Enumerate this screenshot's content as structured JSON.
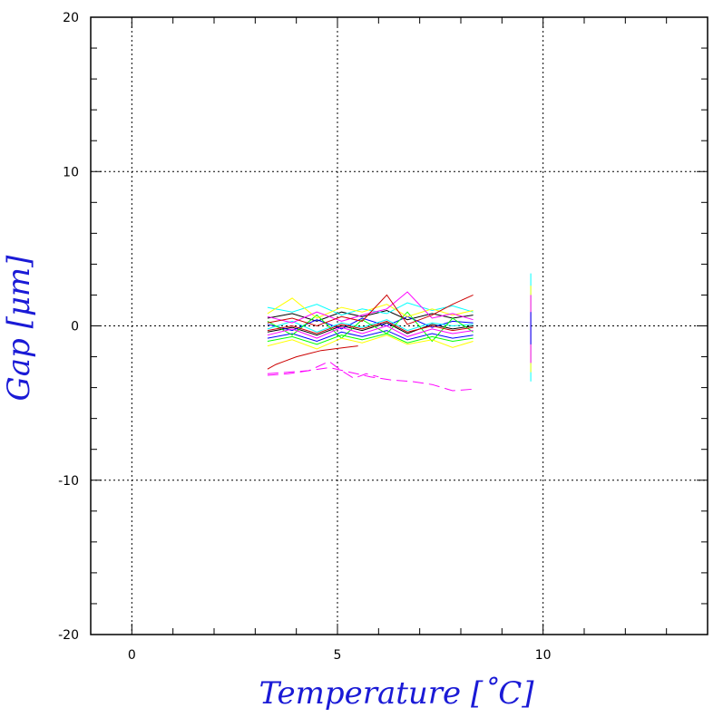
{
  "chart_data": {
    "type": "line",
    "title": "",
    "xlabel": "Temperature [˚C]",
    "ylabel": "Gap [μm]",
    "xlim": [
      -1,
      14
    ],
    "ylim": [
      -20,
      20
    ],
    "x_ticks": [
      0,
      5,
      10
    ],
    "y_ticks": [
      20,
      10,
      0,
      -10,
      -20
    ],
    "x_tick_labels": [
      "0",
      "5",
      "10"
    ],
    "y_tick_labels": [
      "20",
      "10",
      "0",
      "-10",
      "-20"
    ],
    "grid": true,
    "legend": "none",
    "series": [
      {
        "color": "#000000",
        "x": [
          3.3,
          3.9,
          4.5,
          5.1,
          5.6,
          6.2,
          6.7,
          7.3,
          7.8,
          8.3
        ],
        "y": [
          0.5,
          0.8,
          0.3,
          0.9,
          0.6,
          1.0,
          0.4,
          0.8,
          0.5,
          0.7
        ]
      },
      {
        "color": "#000000",
        "x": [
          3.3,
          3.9,
          4.5,
          5.1,
          5.6,
          6.2,
          6.7,
          7.3,
          7.8,
          8.3
        ],
        "y": [
          -0.4,
          -0.1,
          -0.6,
          0.0,
          -0.3,
          0.2,
          -0.5,
          0.1,
          -0.2,
          0.0
        ]
      },
      {
        "color": "#0000ff",
        "x": [
          3.3,
          3.9,
          4.5,
          5.1,
          5.6,
          6.2,
          6.7,
          7.3,
          7.8,
          8.3
        ],
        "y": [
          0.1,
          -0.3,
          0.4,
          -0.2,
          0.5,
          0.0,
          0.6,
          -0.1,
          0.3,
          0.2
        ]
      },
      {
        "color": "#0000ff",
        "x": [
          3.3,
          3.9,
          4.5,
          5.1,
          5.6,
          6.2,
          6.7,
          7.3,
          7.8,
          8.3
        ],
        "y": [
          -0.8,
          -0.5,
          -1.0,
          -0.4,
          -0.7,
          -0.3,
          -0.9,
          -0.5,
          -0.8,
          -0.6
        ]
      },
      {
        "color": "#00ffff",
        "x": [
          3.3,
          3.9,
          4.5,
          5.1,
          5.6,
          6.2,
          6.7,
          7.3,
          7.8,
          8.3
        ],
        "y": [
          1.2,
          0.9,
          1.4,
          0.7,
          1.1,
          0.8,
          1.5,
          1.0,
          1.3,
          0.9
        ]
      },
      {
        "color": "#00ffff",
        "x": [
          3.3,
          3.9,
          4.5,
          5.1,
          5.6,
          6.2,
          6.7,
          7.3,
          7.8,
          8.3
        ],
        "y": [
          -0.2,
          0.3,
          -0.4,
          0.2,
          -0.1,
          0.4,
          -0.3,
          0.2,
          0.0,
          0.1
        ]
      },
      {
        "color": "#00ff00",
        "x": [
          3.3,
          3.9,
          4.5,
          5.1,
          5.6,
          6.2,
          6.7,
          7.3,
          7.8,
          8.3
        ],
        "y": [
          0.3,
          -0.6,
          0.7,
          -0.8,
          0.4,
          -0.5,
          0.9,
          -1.0,
          0.5,
          -0.4
        ]
      },
      {
        "color": "#00ff00",
        "x": [
          3.3,
          3.9,
          4.5,
          5.1,
          5.6,
          6.2,
          6.7,
          7.3,
          7.8,
          8.3
        ],
        "y": [
          -1.0,
          -0.7,
          -1.2,
          -0.6,
          -0.9,
          -0.5,
          -1.1,
          -0.7,
          -1.0,
          -0.8
        ]
      },
      {
        "color": "#ffff00",
        "x": [
          3.3,
          3.9,
          4.5,
          5.1,
          5.6,
          6.2,
          6.7,
          7.3,
          7.8,
          8.3
        ],
        "y": [
          0.8,
          1.8,
          0.5,
          1.2,
          0.9,
          1.4,
          0.6,
          1.1,
          0.7,
          1.0
        ]
      },
      {
        "color": "#ffff00",
        "x": [
          3.3,
          3.9,
          4.5,
          5.1,
          5.6,
          6.2,
          6.7,
          7.3,
          7.8,
          8.3
        ],
        "y": [
          -1.3,
          -0.9,
          -1.5,
          -0.8,
          -1.1,
          -0.6,
          -1.2,
          -0.9,
          -1.4,
          -1.0
        ]
      },
      {
        "color": "#ff00ff",
        "x": [
          3.3,
          3.9,
          4.5,
          5.1,
          5.6,
          6.2,
          6.7,
          7.3,
          7.8,
          8.3
        ],
        "y": [
          0.6,
          0.2,
          0.9,
          0.3,
          0.7,
          1.1,
          2.2,
          0.5,
          0.8,
          0.4
        ]
      },
      {
        "color": "#ff00ff",
        "x": [
          3.3,
          3.9,
          4.5,
          5.1,
          5.6,
          6.2,
          6.7,
          7.3,
          7.8,
          8.3
        ],
        "y": [
          -0.6,
          -0.2,
          -0.8,
          -0.1,
          -0.5,
          0.0,
          -0.7,
          -0.2,
          -0.5,
          -0.3
        ]
      },
      {
        "color": "#cc0000",
        "x": [
          3.3,
          3.9,
          4.5,
          5.1,
          5.6,
          6.2,
          6.7,
          7.3,
          7.8,
          8.3
        ],
        "y": [
          0.2,
          0.5,
          0.0,
          0.6,
          0.3,
          2.0,
          0.1,
          0.7,
          1.4,
          2.0
        ]
      },
      {
        "color": "#cc0000",
        "x": [
          3.3,
          3.9,
          4.5,
          5.1,
          5.6,
          6.2,
          6.7,
          7.3,
          7.8,
          8.3
        ],
        "y": [
          -0.3,
          0.0,
          -0.5,
          0.1,
          -0.2,
          0.3,
          -0.4,
          0.0,
          -0.3,
          -0.1
        ]
      },
      {
        "color": "#cc0000",
        "x": [
          3.3,
          3.5,
          3.7,
          4.0,
          4.3,
          4.6,
          4.9,
          5.2,
          5.5
        ],
        "y": [
          -2.8,
          -2.5,
          -2.3,
          -2.0,
          -1.8,
          -1.6,
          -1.5,
          -1.4,
          -1.3
        ]
      },
      {
        "color": "#ff00ff",
        "dashed": true,
        "x": [
          3.3,
          3.8,
          4.3,
          4.8,
          5.3,
          5.8,
          6.3,
          6.8,
          7.3,
          7.8,
          8.3
        ],
        "y": [
          -3.1,
          -3.0,
          -2.9,
          -2.7,
          -3.0,
          -3.3,
          -3.5,
          -3.6,
          -3.8,
          -4.2,
          -4.1
        ]
      },
      {
        "color": "#ff00ff",
        "dashed": true,
        "x": [
          3.3,
          3.8,
          4.3,
          4.8,
          5.1,
          5.4,
          5.7,
          6.0
        ],
        "y": [
          -3.2,
          -3.1,
          -2.9,
          -2.3,
          -2.9,
          -3.4,
          -3.1,
          -3.3
        ]
      },
      {
        "color": "#00ffff",
        "x": [
          9.7,
          9.7
        ],
        "y": [
          -3.6,
          3.4
        ]
      },
      {
        "color": "#ffff00",
        "x": [
          9.7,
          9.7
        ],
        "y": [
          -3.0,
          2.6
        ]
      },
      {
        "color": "#ff00ff",
        "x": [
          9.7,
          9.7
        ],
        "y": [
          -2.4,
          2.0
        ]
      },
      {
        "color": "#0000ff",
        "x": [
          9.7,
          9.7
        ],
        "y": [
          -1.2,
          0.9
        ]
      }
    ]
  }
}
